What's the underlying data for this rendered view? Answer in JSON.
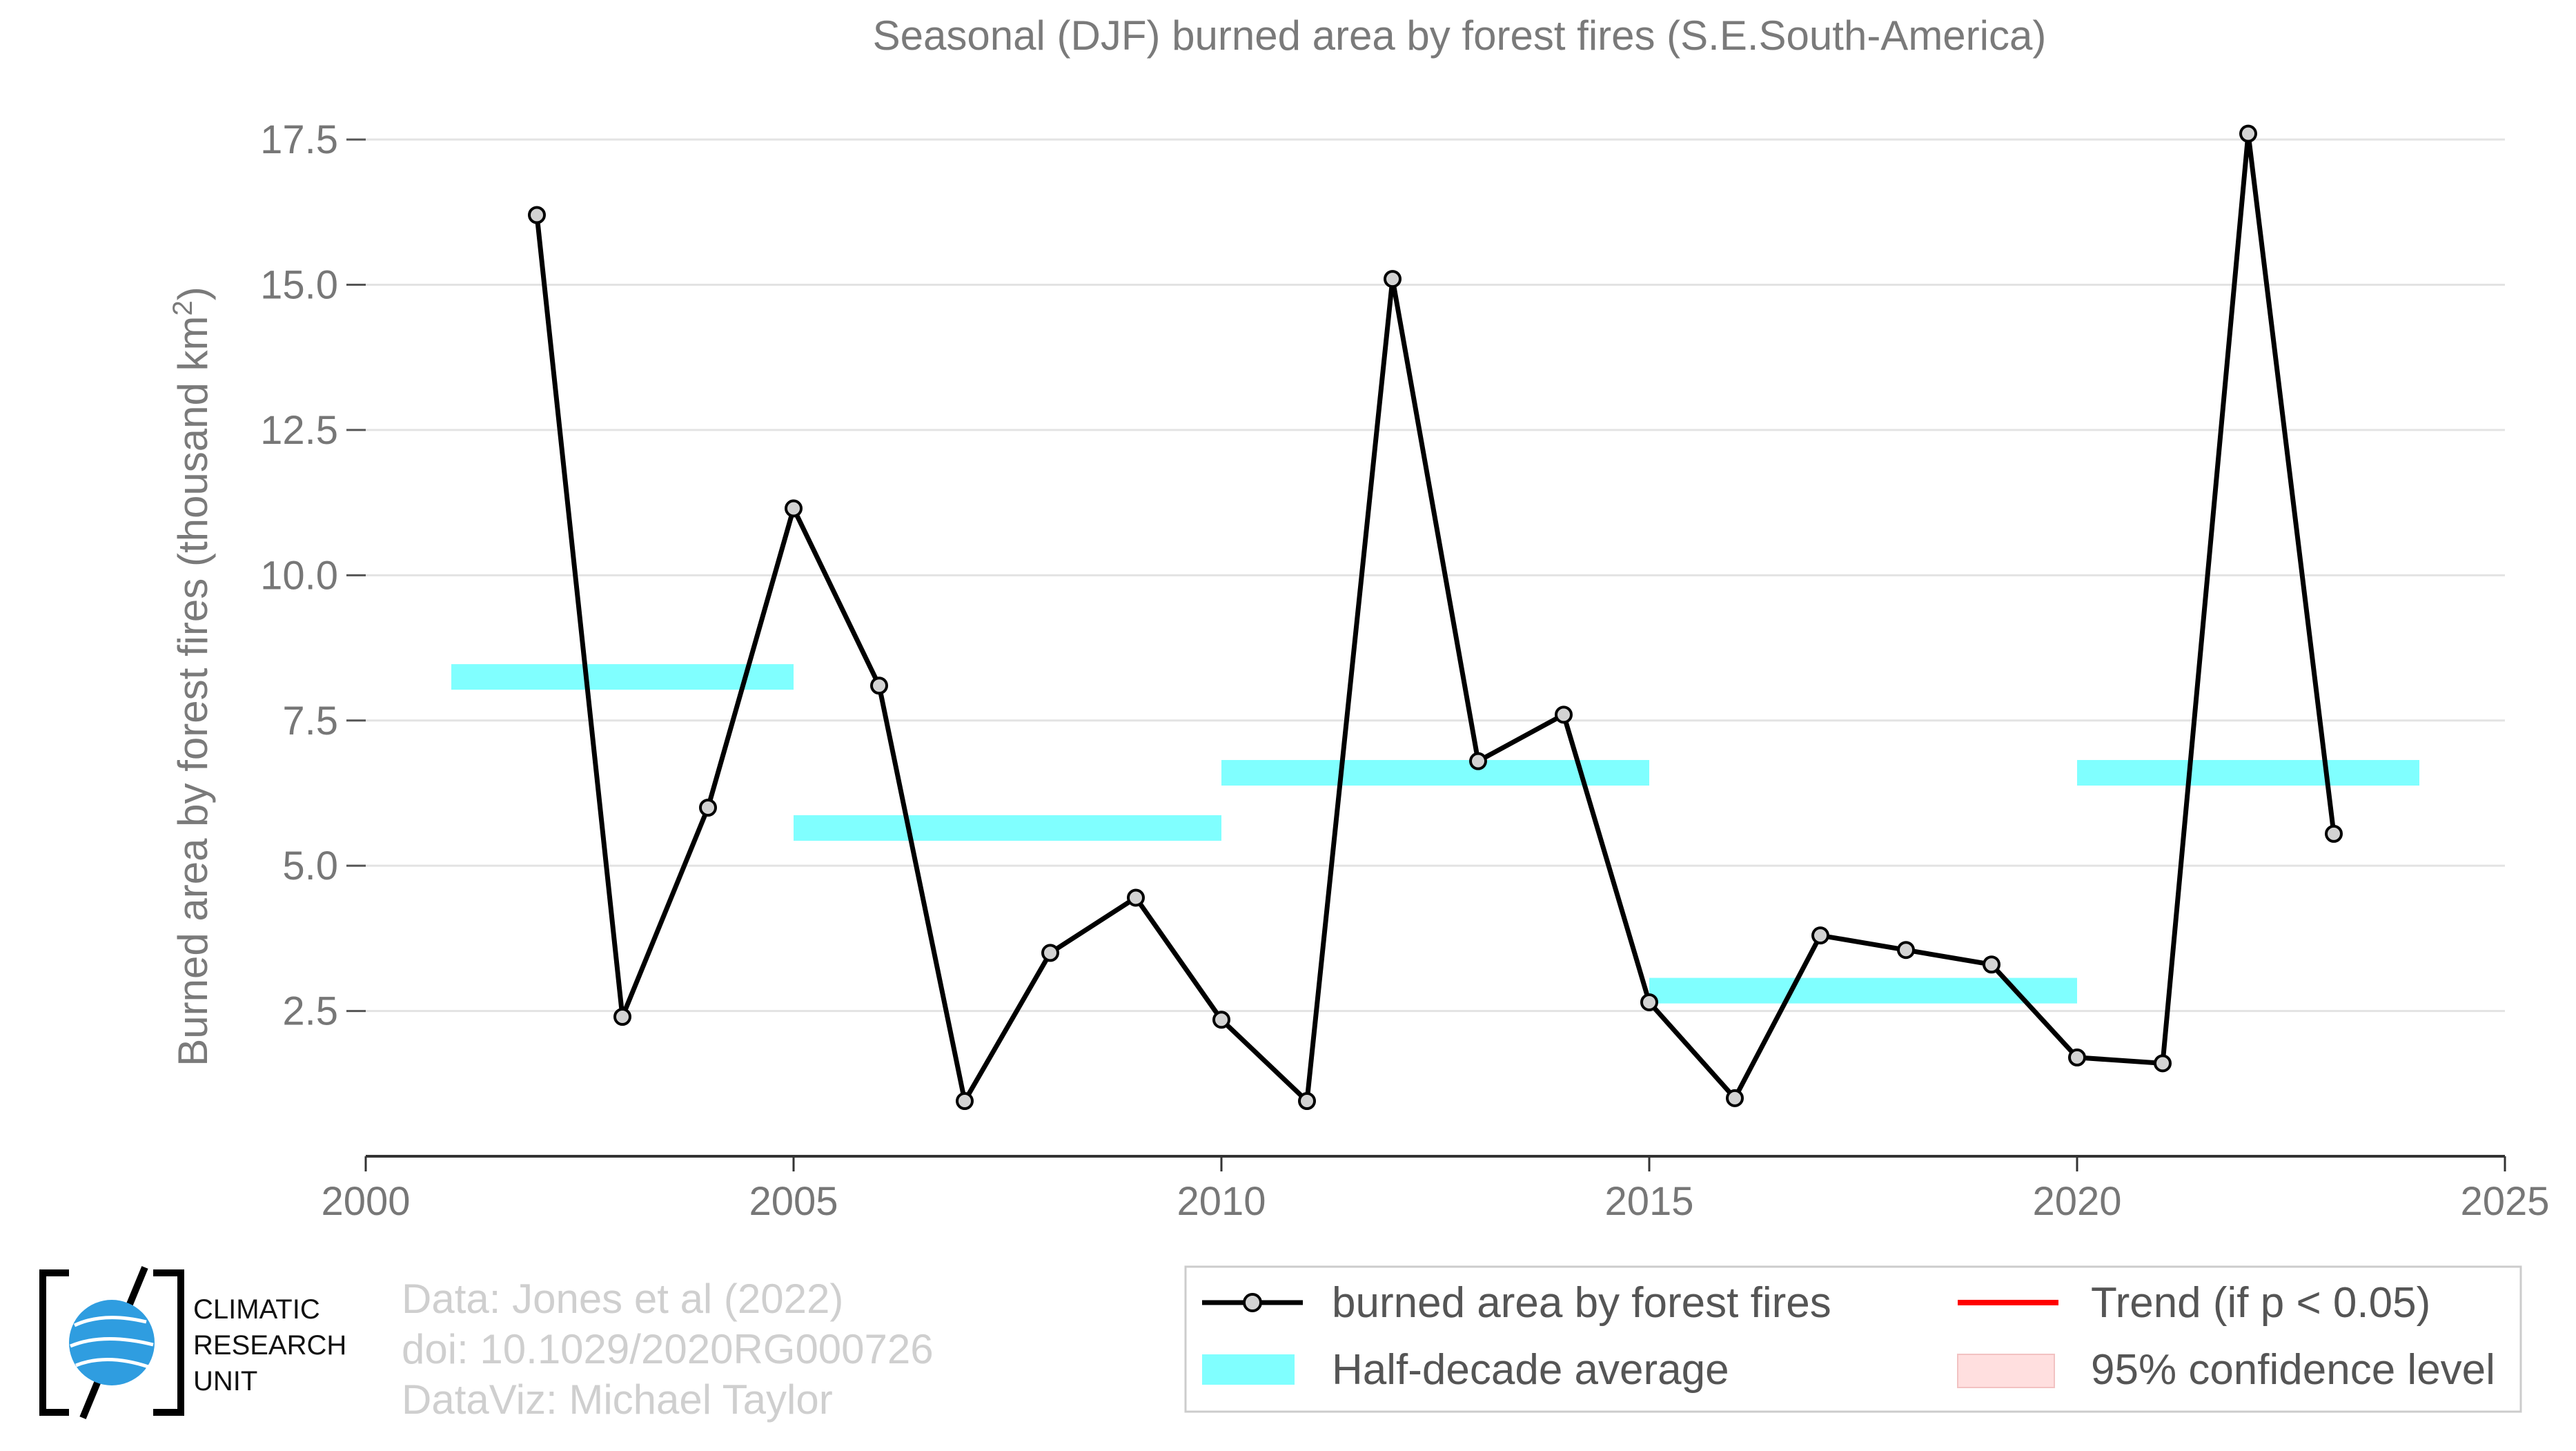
{
  "chart_data": {
    "type": "line",
    "title": "Seasonal (DJF) burned area by forest fires (S.E.South-America)",
    "ylabel": "Burned area by forest fires (thousand km",
    "ylabel_superscript": "2",
    "ylabel_suffix": ")",
    "xlabel": "",
    "xlim": [
      2000,
      2025
    ],
    "ylim": [
      0,
      18
    ],
    "x_ticks": [
      2000,
      2005,
      2010,
      2015,
      2020,
      2025
    ],
    "x_tick_labels": [
      "2000",
      "2005",
      "2010",
      "2015",
      "2020",
      "2025"
    ],
    "y_ticks": [
      2.5,
      5.0,
      7.5,
      10.0,
      12.5,
      15.0,
      17.5
    ],
    "y_tick_labels": [
      "2.5",
      "5.0",
      "7.5",
      "10.0",
      "12.5",
      "15.0",
      "17.5"
    ],
    "grid": "horizontal",
    "legend_position": "bottom-right",
    "series": [
      {
        "name": "burned area by forest fires",
        "color": "#000000",
        "marker_fill": "#d3d3d3",
        "x": [
          2002,
          2003,
          2004,
          2005,
          2006,
          2007,
          2008,
          2009,
          2010,
          2011,
          2012,
          2013,
          2014,
          2015,
          2016,
          2017,
          2018,
          2019,
          2020,
          2021,
          2022,
          2023
        ],
        "y": [
          16.2,
          2.4,
          6.0,
          11.15,
          8.1,
          0.95,
          3.5,
          4.45,
          2.35,
          0.95,
          15.1,
          6.8,
          7.6,
          2.65,
          1.0,
          3.8,
          3.55,
          3.3,
          1.7,
          1.6,
          17.6,
          5.55
        ]
      }
    ],
    "half_decade_average": {
      "name": "Half-decade average",
      "color": "#80ffff",
      "segments": [
        {
          "x_start": 2001,
          "x_end": 2005,
          "value": 8.25
        },
        {
          "x_start": 2005,
          "x_end": 2010,
          "value": 5.65
        },
        {
          "x_start": 2010,
          "x_end": 2015,
          "value": 6.6
        },
        {
          "x_start": 2015,
          "x_end": 2020,
          "value": 2.85
        },
        {
          "x_start": 2020,
          "x_end": 2024,
          "value": 6.6
        }
      ]
    },
    "legend_entries": [
      {
        "label": "burned area by forest fires",
        "kind": "line-marker",
        "color": "#000000"
      },
      {
        "label": "Trend (if p < 0.05)",
        "kind": "line",
        "color": "#ff0000"
      },
      {
        "label": "Half-decade average",
        "kind": "band",
        "color": "#80ffff"
      },
      {
        "label": "95% confidence level",
        "kind": "band",
        "color": "#ffdfdf"
      }
    ]
  },
  "credits": {
    "lines": [
      "Data: Jones et al (2022)",
      "doi: 10.1029/2020RG000726",
      "DataViz: Michael Taylor"
    ]
  },
  "logo": {
    "lines": [
      "CLIMATIC",
      "RESEARCH",
      "UNIT"
    ],
    "globe_color": "#2f9de0"
  }
}
